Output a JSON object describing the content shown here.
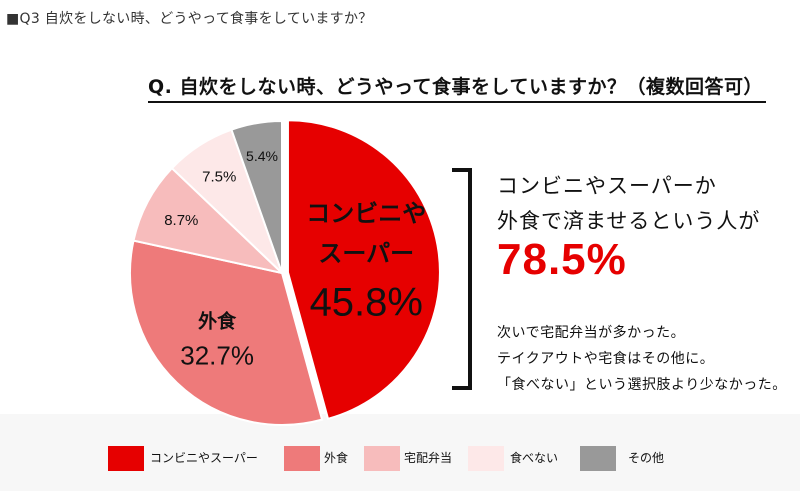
{
  "header": {
    "title": "■Q3 自炊をしない時、どうやって食事をしていますか？"
  },
  "chart_data": {
    "type": "pie",
    "title": "Q. 自炊をしない時、どうやって食事をしていますか？（複数回答可）",
    "slices": [
      {
        "label": "コンビニやスーパー",
        "value": 45.8,
        "display": "45.8%",
        "inner_label_lines": [
          "コンビニや",
          "スーパー"
        ],
        "color": "#e60000"
      },
      {
        "label": "外食",
        "value": 32.7,
        "display": "32.7%",
        "inner_label_lines": [
          "外食"
        ],
        "color": "#ee7a7a"
      },
      {
        "label": "宅配弁当",
        "value": 8.7,
        "display": "8.7%",
        "inner_label_lines": [],
        "color": "#f7bcbc"
      },
      {
        "label": "食べない",
        "value": 7.5,
        "display": "7.5%",
        "inner_label_lines": [],
        "color": "#fde8e8"
      },
      {
        "label": "その他",
        "value": 5.4,
        "display": "5.4%",
        "inner_label_lines": [],
        "color": "#999999"
      }
    ],
    "legend_position": "bottom"
  },
  "summary": {
    "line1": "コンビニやスーパーか",
    "line2": "外食で済ませるという人が",
    "big_percent": "78.5%",
    "notes": [
      "次いで宅配弁当が多かった。",
      "テイクアウトや宅食はその他に。",
      "「食べない」という選択肢より少なかった。"
    ]
  }
}
